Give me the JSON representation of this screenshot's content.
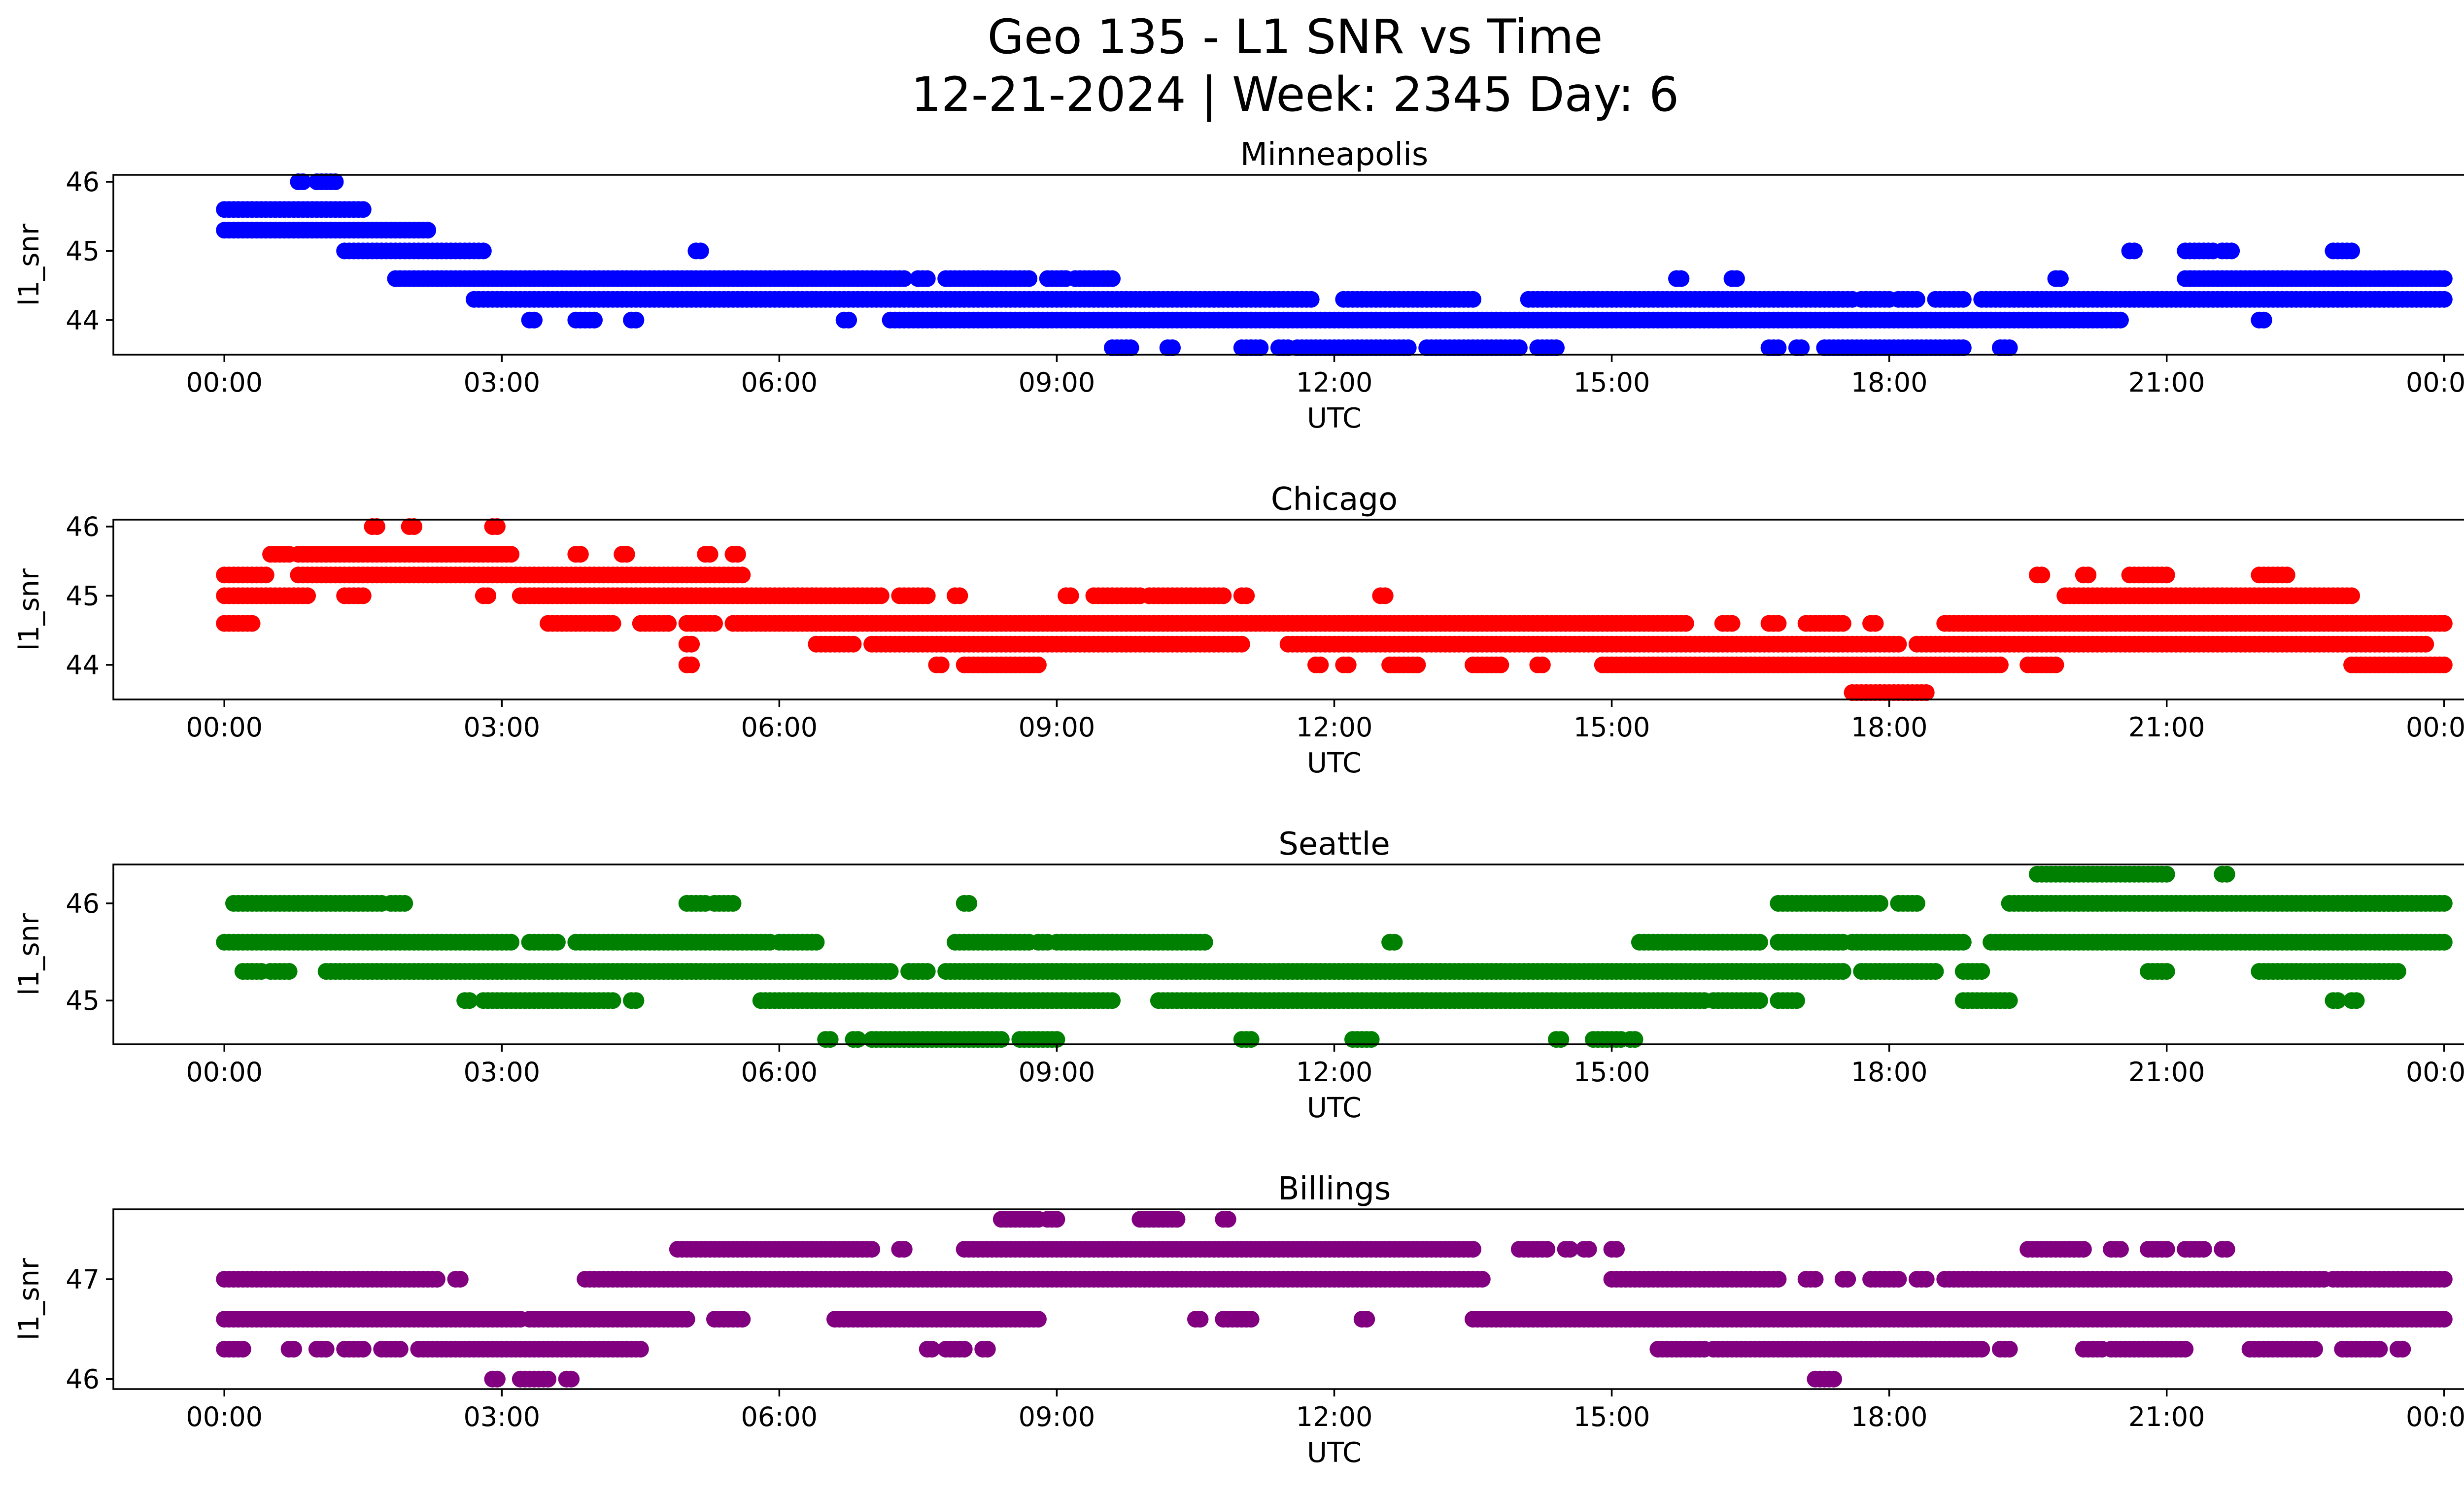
{
  "figure": {
    "title_line1": "Geo 135 - L1 SNR vs Time",
    "title_line2": "12-21-2024 | Week: 2345 Day: 6"
  },
  "chart_data": [
    {
      "type": "scatter",
      "title": "Minneapolis",
      "xlabel": "UTC",
      "ylabel": "l1_snr",
      "color": "#0000ff",
      "xlim_hours": [
        -1.2,
        25.2
      ],
      "ylim": [
        43.5,
        46.1
      ],
      "xticks_hours": [
        0,
        3,
        6,
        9,
        12,
        15,
        18,
        21,
        24
      ],
      "xtick_labels": [
        "00:00",
        "03:00",
        "06:00",
        "09:00",
        "12:00",
        "15:00",
        "18:00",
        "21:00",
        "00:00"
      ],
      "yticks": [
        44,
        45,
        46
      ],
      "ytick_labels": [
        "44",
        "45",
        "46"
      ],
      "runs": [
        {
          "y": 45.6,
          "segments": [
            [
              0.0,
              1.5
            ]
          ]
        },
        {
          "y": 45.3,
          "segments": [
            [
              0.0,
              2.2
            ]
          ]
        },
        {
          "y": 45.0,
          "segments": [
            [
              1.3,
              2.8
            ]
          ]
        },
        {
          "y": 44.6,
          "segments": [
            [
              1.85,
              7.35
            ],
            [
              7.5,
              7.6
            ],
            [
              7.8,
              8.7
            ],
            [
              8.9,
              9.1
            ],
            [
              9.2,
              9.6
            ],
            [
              21.2,
              24.0
            ]
          ]
        },
        {
          "y": 44.3,
          "segments": [
            [
              2.7,
              11.75
            ],
            [
              12.1,
              13.5
            ],
            [
              14.1,
              17.6
            ],
            [
              17.7,
              18.0
            ],
            [
              18.1,
              18.3
            ],
            [
              18.5,
              18.8
            ],
            [
              19.0,
              24.0
            ]
          ]
        },
        {
          "y": 44.0,
          "segments": [
            [
              7.2,
              20.5
            ]
          ]
        },
        {
          "y": 43.6,
          "segments": [
            [
              9.6,
              9.8
            ],
            [
              10.2,
              10.25
            ],
            [
              11.0,
              11.2
            ],
            [
              11.4,
              11.5
            ],
            [
              11.6,
              12.8
            ],
            [
              13.0,
              14.0
            ],
            [
              14.2,
              14.4
            ],
            [
              16.7,
              16.8
            ],
            [
              17.0,
              17.05
            ],
            [
              17.3,
              18.8
            ],
            [
              19.2,
              19.3
            ]
          ]
        },
        {
          "y": 46.0,
          "segments": [
            [
              0.8,
              0.85
            ],
            [
              1.0,
              1.2
            ]
          ]
        },
        {
          "y": 45.0,
          "segments": [
            [
              5.1,
              5.15
            ],
            [
              20.6,
              20.65
            ],
            [
              21.2,
              21.5
            ],
            [
              21.6,
              21.7
            ],
            [
              22.8,
              23.0
            ]
          ]
        },
        {
          "y": 44.0,
          "segments": [
            [
              3.3,
              3.35
            ],
            [
              3.8,
              4.0
            ],
            [
              4.4,
              4.45
            ],
            [
              6.7,
              6.75
            ],
            [
              22.0,
              22.05
            ]
          ]
        },
        {
          "y": 44.6,
          "segments": [
            [
              15.7,
              15.75
            ],
            [
              16.3,
              16.35
            ],
            [
              19.8,
              19.85
            ]
          ]
        }
      ]
    },
    {
      "type": "scatter",
      "title": "Chicago",
      "xlabel": "UTC",
      "ylabel": "l1_snr",
      "color": "#ff0000",
      "xlim_hours": [
        -1.2,
        25.2
      ],
      "ylim": [
        43.5,
        46.1
      ],
      "xticks_hours": [
        0,
        3,
        6,
        9,
        12,
        15,
        18,
        21,
        24
      ],
      "xtick_labels": [
        "00:00",
        "03:00",
        "06:00",
        "09:00",
        "12:00",
        "15:00",
        "18:00",
        "21:00",
        "00:00"
      ],
      "yticks": [
        44,
        45,
        46
      ],
      "ytick_labels": [
        "44",
        "45",
        "46"
      ],
      "runs": [
        {
          "y": 45.3,
          "segments": [
            [
              0.0,
              0.45
            ],
            [
              0.8,
              5.6
            ]
          ]
        },
        {
          "y": 45.6,
          "segments": [
            [
              0.5,
              0.7
            ],
            [
              0.8,
              3.1
            ],
            [
              3.8,
              3.85
            ],
            [
              4.3,
              4.35
            ],
            [
              5.2,
              5.25
            ],
            [
              5.5,
              5.55
            ]
          ]
        },
        {
          "y": 45.0,
          "segments": [
            [
              0.0,
              0.9
            ],
            [
              1.3,
              1.5
            ],
            [
              2.8,
              2.85
            ],
            [
              3.2,
              7.1
            ],
            [
              7.3,
              7.6
            ],
            [
              7.9,
              7.95
            ],
            [
              9.1,
              9.15
            ],
            [
              9.4,
              9.9
            ],
            [
              10.0,
              10.8
            ],
            [
              11.0,
              11.05
            ],
            [
              12.5,
              12.55
            ],
            [
              19.9,
              23.0
            ]
          ]
        },
        {
          "y": 44.6,
          "segments": [
            [
              0.0,
              0.3
            ],
            [
              3.5,
              4.2
            ],
            [
              4.5,
              4.8
            ],
            [
              5.0,
              5.3
            ],
            [
              5.5,
              5.55
            ],
            [
              5.6,
              15.8
            ],
            [
              16.2,
              16.3
            ],
            [
              16.7,
              16.8
            ],
            [
              17.1,
              17.5
            ],
            [
              17.8,
              17.85
            ],
            [
              18.6,
              24.0
            ]
          ]
        },
        {
          "y": 44.3,
          "segments": [
            [
              6.4,
              6.8
            ],
            [
              7.0,
              11.0
            ],
            [
              11.5,
              18.1
            ],
            [
              18.3,
              23.8
            ]
          ]
        },
        {
          "y": 44.0,
          "segments": [
            [
              5.0,
              5.05
            ],
            [
              7.7,
              7.75
            ],
            [
              8.0,
              8.8
            ],
            [
              11.8,
              11.85
            ],
            [
              12.1,
              12.15
            ],
            [
              12.6,
              12.9
            ],
            [
              13.5,
              13.8
            ],
            [
              14.2,
              14.25
            ],
            [
              14.9,
              19.2
            ],
            [
              19.5,
              19.8
            ],
            [
              23.0,
              24.0
            ]
          ]
        },
        {
          "y": 43.6,
          "segments": [
            [
              17.6,
              18.4
            ]
          ]
        },
        {
          "y": 46.0,
          "segments": [
            [
              1.6,
              1.65
            ],
            [
              2.0,
              2.05
            ],
            [
              2.9,
              2.95
            ]
          ]
        },
        {
          "y": 44.3,
          "segments": [
            [
              5.0,
              5.05
            ]
          ]
        },
        {
          "y": 45.3,
          "segments": [
            [
              20.6,
              21.0
            ],
            [
              22.0,
              22.3
            ],
            [
              19.6,
              19.65
            ],
            [
              20.1,
              20.15
            ]
          ]
        }
      ]
    },
    {
      "type": "scatter",
      "title": "Seattle",
      "xlabel": "UTC",
      "ylabel": "l1_snr",
      "color": "#008000",
      "xlim_hours": [
        -1.2,
        25.2
      ],
      "ylim": [
        44.55,
        46.4
      ],
      "xticks_hours": [
        0,
        3,
        6,
        9,
        12,
        15,
        18,
        21,
        24
      ],
      "xtick_labels": [
        "00:00",
        "03:00",
        "06:00",
        "09:00",
        "12:00",
        "15:00",
        "18:00",
        "21:00",
        "00:00"
      ],
      "yticks": [
        45,
        46
      ],
      "ytick_labels": [
        "45",
        "46"
      ],
      "runs": [
        {
          "y": 46.0,
          "segments": [
            [
              0.1,
              1.7
            ],
            [
              1.8,
              1.95
            ],
            [
              5.0,
              5.2
            ],
            [
              5.3,
              5.5
            ],
            [
              8.0,
              8.05
            ],
            [
              16.8,
              17.9
            ],
            [
              18.1,
              18.3
            ],
            [
              19.3,
              23.5
            ],
            [
              23.0,
              24.0
            ]
          ]
        },
        {
          "y": 45.6,
          "segments": [
            [
              0.0,
              3.1
            ],
            [
              3.3,
              3.6
            ],
            [
              3.8,
              5.9
            ],
            [
              6.0,
              6.4
            ],
            [
              7.9,
              8.7
            ],
            [
              8.8,
              8.9
            ],
            [
              9.0,
              10.6
            ],
            [
              12.6,
              12.65
            ],
            [
              15.3,
              16.6
            ],
            [
              16.8,
              17.5
            ],
            [
              17.6,
              18.8
            ],
            [
              19.1,
              24.0
            ]
          ]
        },
        {
          "y": 45.3,
          "segments": [
            [
              0.2,
              0.4
            ],
            [
              0.5,
              0.7
            ],
            [
              1.1,
              7.2
            ],
            [
              7.4,
              7.6
            ],
            [
              7.8,
              17.5
            ],
            [
              17.7,
              18.5
            ],
            [
              18.8,
              19.0
            ],
            [
              20.8,
              21.0
            ],
            [
              22.0,
              23.5
            ]
          ]
        },
        {
          "y": 45.0,
          "segments": [
            [
              2.6,
              2.65
            ],
            [
              2.8,
              4.2
            ],
            [
              4.4,
              4.45
            ],
            [
              5.8,
              9.6
            ],
            [
              10.1,
              15.8
            ],
            [
              15.8,
              16.0
            ],
            [
              16.1,
              16.6
            ],
            [
              16.8,
              17.0
            ],
            [
              18.8,
              19.3
            ],
            [
              22.8,
              22.85
            ],
            [
              23.0,
              23.05
            ]
          ]
        },
        {
          "y": 44.6,
          "segments": [
            [
              6.5,
              6.55
            ],
            [
              6.8,
              6.85
            ],
            [
              7.0,
              8.4
            ],
            [
              8.6,
              9.0
            ],
            [
              11.0,
              11.1
            ],
            [
              12.2,
              12.4
            ],
            [
              14.4,
              14.45
            ],
            [
              14.8,
              15.1
            ],
            [
              15.2,
              15.25
            ]
          ]
        },
        {
          "y": 46.3,
          "segments": [
            [
              19.6,
              21.0
            ],
            [
              21.6,
              21.65
            ]
          ]
        }
      ]
    },
    {
      "type": "scatter",
      "title": "Billings",
      "xlabel": "UTC",
      "ylabel": "l1_snr",
      "color": "#800080",
      "xlim_hours": [
        -1.2,
        25.2
      ],
      "ylim": [
        45.9,
        47.7
      ],
      "xticks_hours": [
        0,
        3,
        6,
        9,
        12,
        15,
        18,
        21,
        24
      ],
      "xtick_labels": [
        "00:00",
        "03:00",
        "06:00",
        "09:00",
        "12:00",
        "15:00",
        "18:00",
        "21:00",
        "00:00"
      ],
      "yticks": [
        46,
        47
      ],
      "ytick_labels": [
        "46",
        "47"
      ],
      "runs": [
        {
          "y": 47.0,
          "segments": [
            [
              0.0,
              2.3
            ],
            [
              2.5,
              2.55
            ],
            [
              3.9,
              13.6
            ],
            [
              15.0,
              16.8
            ],
            [
              17.1,
              17.2
            ],
            [
              17.5,
              17.55
            ],
            [
              17.8,
              18.1
            ],
            [
              18.3,
              18.4
            ],
            [
              18.6,
              22.7
            ],
            [
              22.8,
              24.0
            ]
          ]
        },
        {
          "y": 46.6,
          "segments": [
            [
              0.0,
              3.2
            ],
            [
              3.3,
              5.0
            ],
            [
              5.3,
              5.6
            ],
            [
              6.6,
              8.8
            ],
            [
              10.5,
              10.55
            ],
            [
              10.8,
              11.1
            ],
            [
              12.3,
              12.35
            ],
            [
              13.5,
              24.0
            ]
          ]
        },
        {
          "y": 46.3,
          "segments": [
            [
              0.0,
              0.2
            ],
            [
              0.7,
              0.75
            ],
            [
              1.0,
              1.1
            ],
            [
              1.3,
              1.5
            ],
            [
              1.7,
              1.9
            ],
            [
              2.1,
              4.5
            ],
            [
              7.6,
              7.65
            ],
            [
              7.8,
              8.0
            ],
            [
              8.2,
              8.25
            ],
            [
              15.5,
              16.0
            ],
            [
              16.1,
              19.0
            ],
            [
              19.2,
              19.3
            ],
            [
              20.1,
              20.3
            ],
            [
              20.4,
              21.2
            ],
            [
              21.9,
              22.6
            ],
            [
              22.9,
              23.3
            ],
            [
              23.5,
              23.55
            ]
          ]
        },
        {
          "y": 47.3,
          "segments": [
            [
              4.9,
              7.0
            ],
            [
              7.3,
              7.35
            ],
            [
              8.0,
              13.5
            ],
            [
              14.0,
              14.3
            ],
            [
              14.5,
              14.55
            ],
            [
              14.7,
              14.75
            ],
            [
              15.0,
              15.05
            ],
            [
              19.5,
              20.1
            ],
            [
              20.4,
              20.5
            ],
            [
              20.8,
              21.0
            ],
            [
              21.6,
              21.65
            ],
            [
              21.2,
              21.4
            ]
          ]
        },
        {
          "y": 47.6,
          "segments": [
            [
              8.4,
              8.8
            ],
            [
              8.9,
              9.0
            ],
            [
              9.9,
              10.3
            ],
            [
              10.8,
              10.85
            ]
          ]
        },
        {
          "y": 46.0,
          "segments": [
            [
              2.9,
              2.95
            ],
            [
              3.2,
              3.5
            ],
            [
              3.7,
              3.75
            ],
            [
              17.2,
              17.4
            ]
          ]
        }
      ]
    }
  ]
}
